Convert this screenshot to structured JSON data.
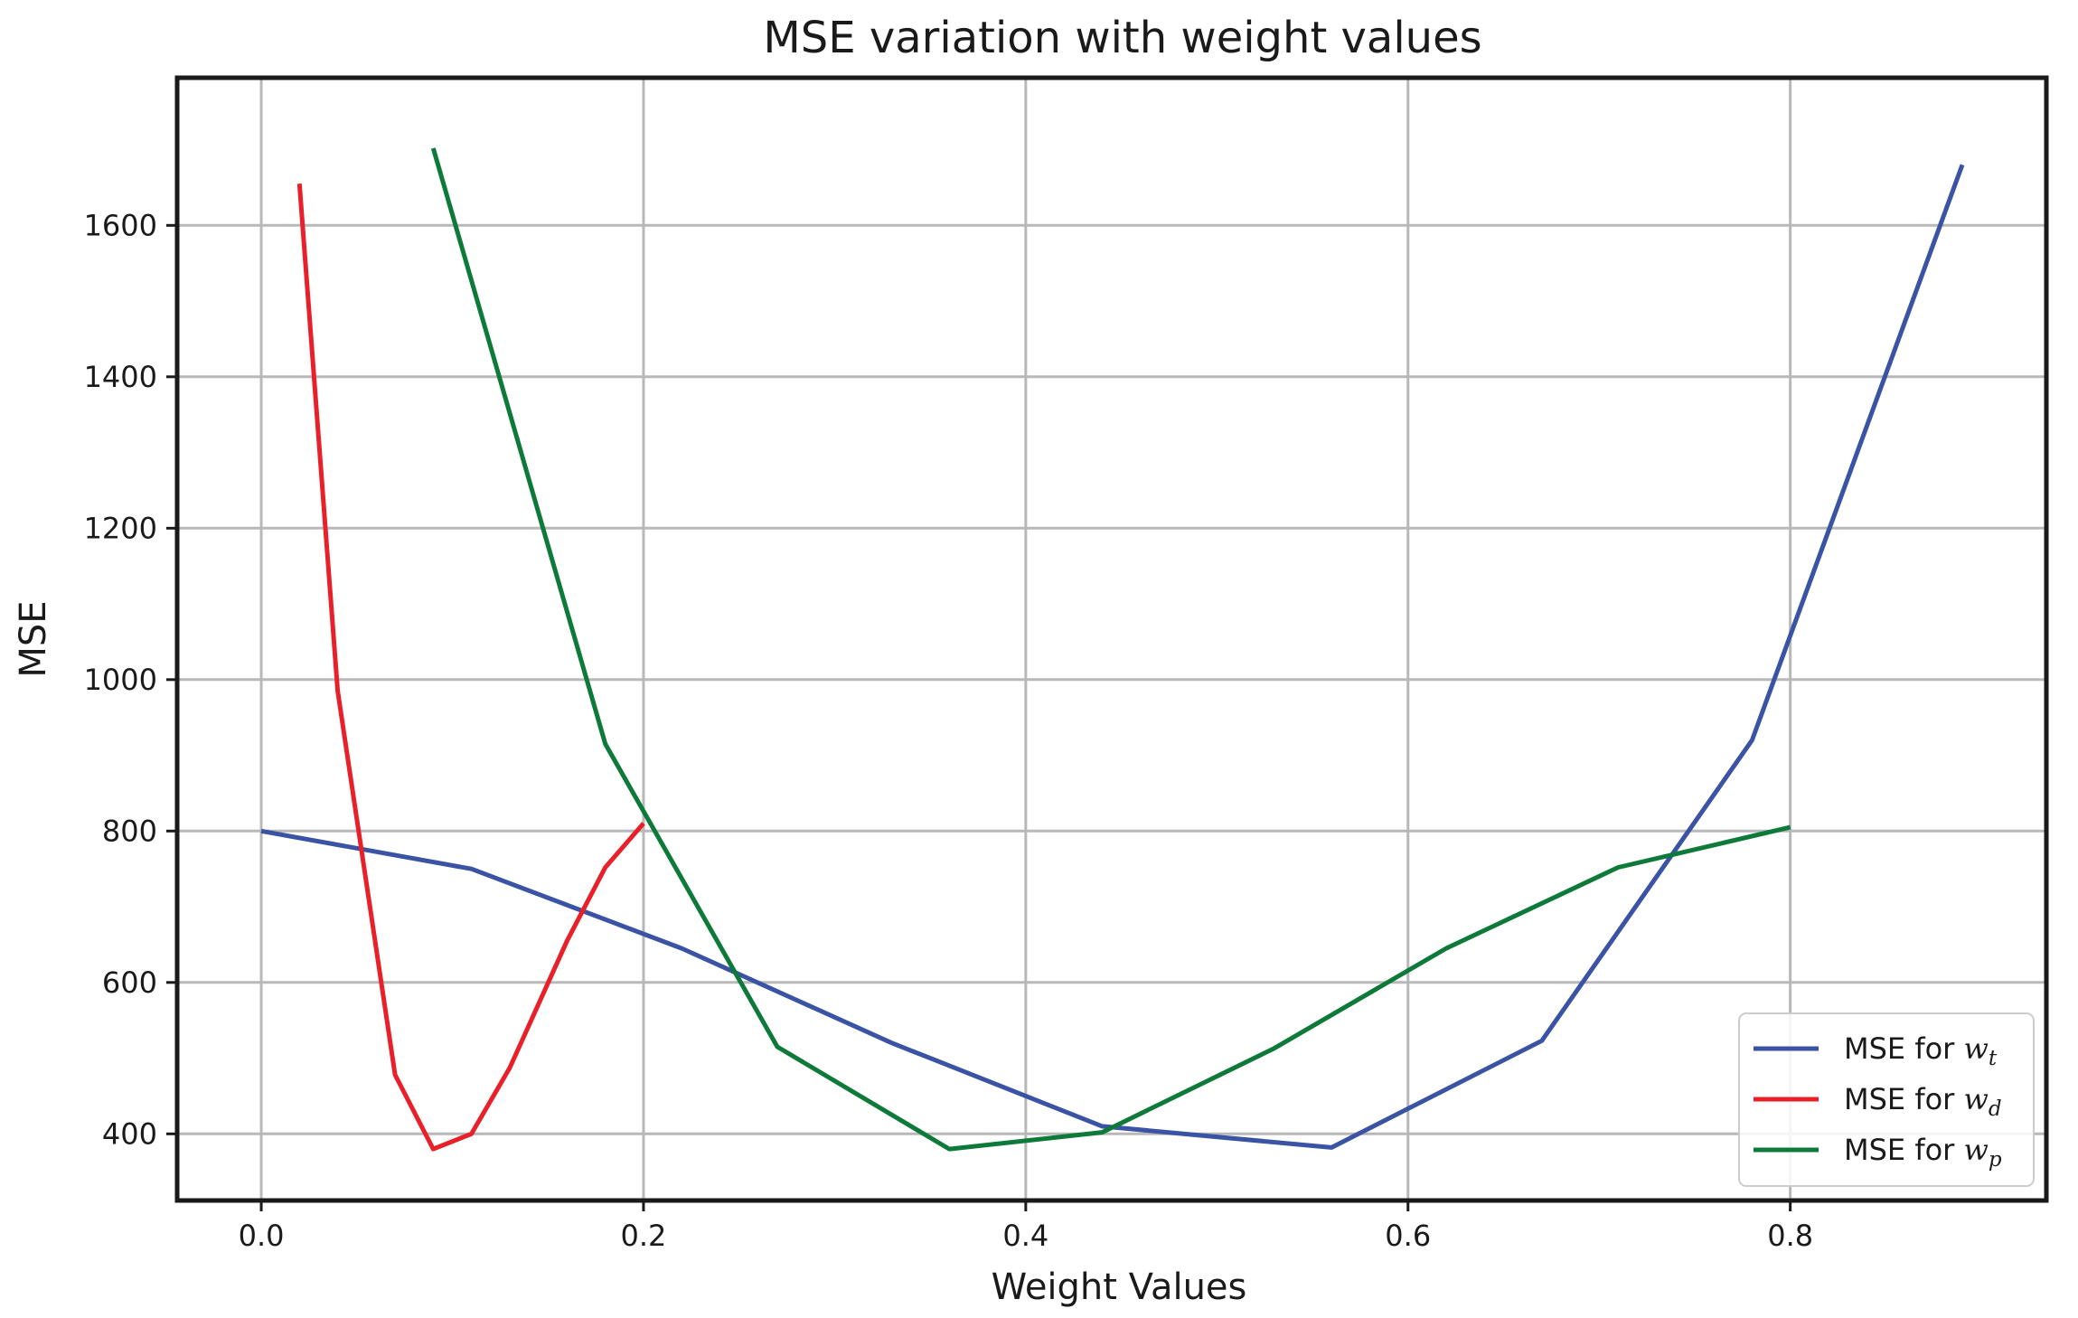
{
  "chart_data": {
    "type": "line",
    "title": "MSE variation with weight values",
    "xlabel": "Weight Values",
    "ylabel": "MSE",
    "xlim": [
      -0.044,
      0.934
    ],
    "ylim": [
      312,
      1795
    ],
    "xticks": [
      0.0,
      0.2,
      0.4,
      0.6,
      0.8
    ],
    "xtick_labels": [
      "0.0",
      "0.2",
      "0.4",
      "0.6",
      "0.8"
    ],
    "yticks": [
      400,
      600,
      800,
      1000,
      1200,
      1400,
      1600
    ],
    "ytick_labels": [
      "400",
      "600",
      "800",
      "1000",
      "1200",
      "1400",
      "1600"
    ],
    "grid": true,
    "legend_position": "lower-right",
    "series": [
      {
        "name": "MSE for w_t",
        "legend_prefix": "MSE for ",
        "legend_var": "w",
        "legend_sub": "t",
        "color": "#3a53a4",
        "x": [
          0.0,
          0.11,
          0.22,
          0.33,
          0.44,
          0.56,
          0.67,
          0.78,
          0.89
        ],
        "y": [
          800,
          750,
          645,
          520,
          410,
          382,
          523,
          920,
          1680
        ]
      },
      {
        "name": "MSE for w_d",
        "legend_prefix": "MSE for ",
        "legend_var": "w",
        "legend_sub": "d",
        "color": "#e8202a",
        "x": [
          0.02,
          0.04,
          0.07,
          0.09,
          0.11,
          0.13,
          0.16,
          0.18,
          0.2
        ],
        "y": [
          1655,
          985,
          478,
          380,
          400,
          487,
          655,
          752,
          810
        ]
      },
      {
        "name": "MSE for w_p",
        "legend_prefix": "MSE for ",
        "legend_var": "w",
        "legend_sub": "p",
        "color": "#0d7a3a",
        "x": [
          0.09,
          0.18,
          0.27,
          0.36,
          0.44,
          0.53,
          0.62,
          0.71,
          0.8
        ],
        "y": [
          1702,
          915,
          515,
          380,
          402,
          513,
          645,
          752,
          805
        ]
      }
    ]
  }
}
